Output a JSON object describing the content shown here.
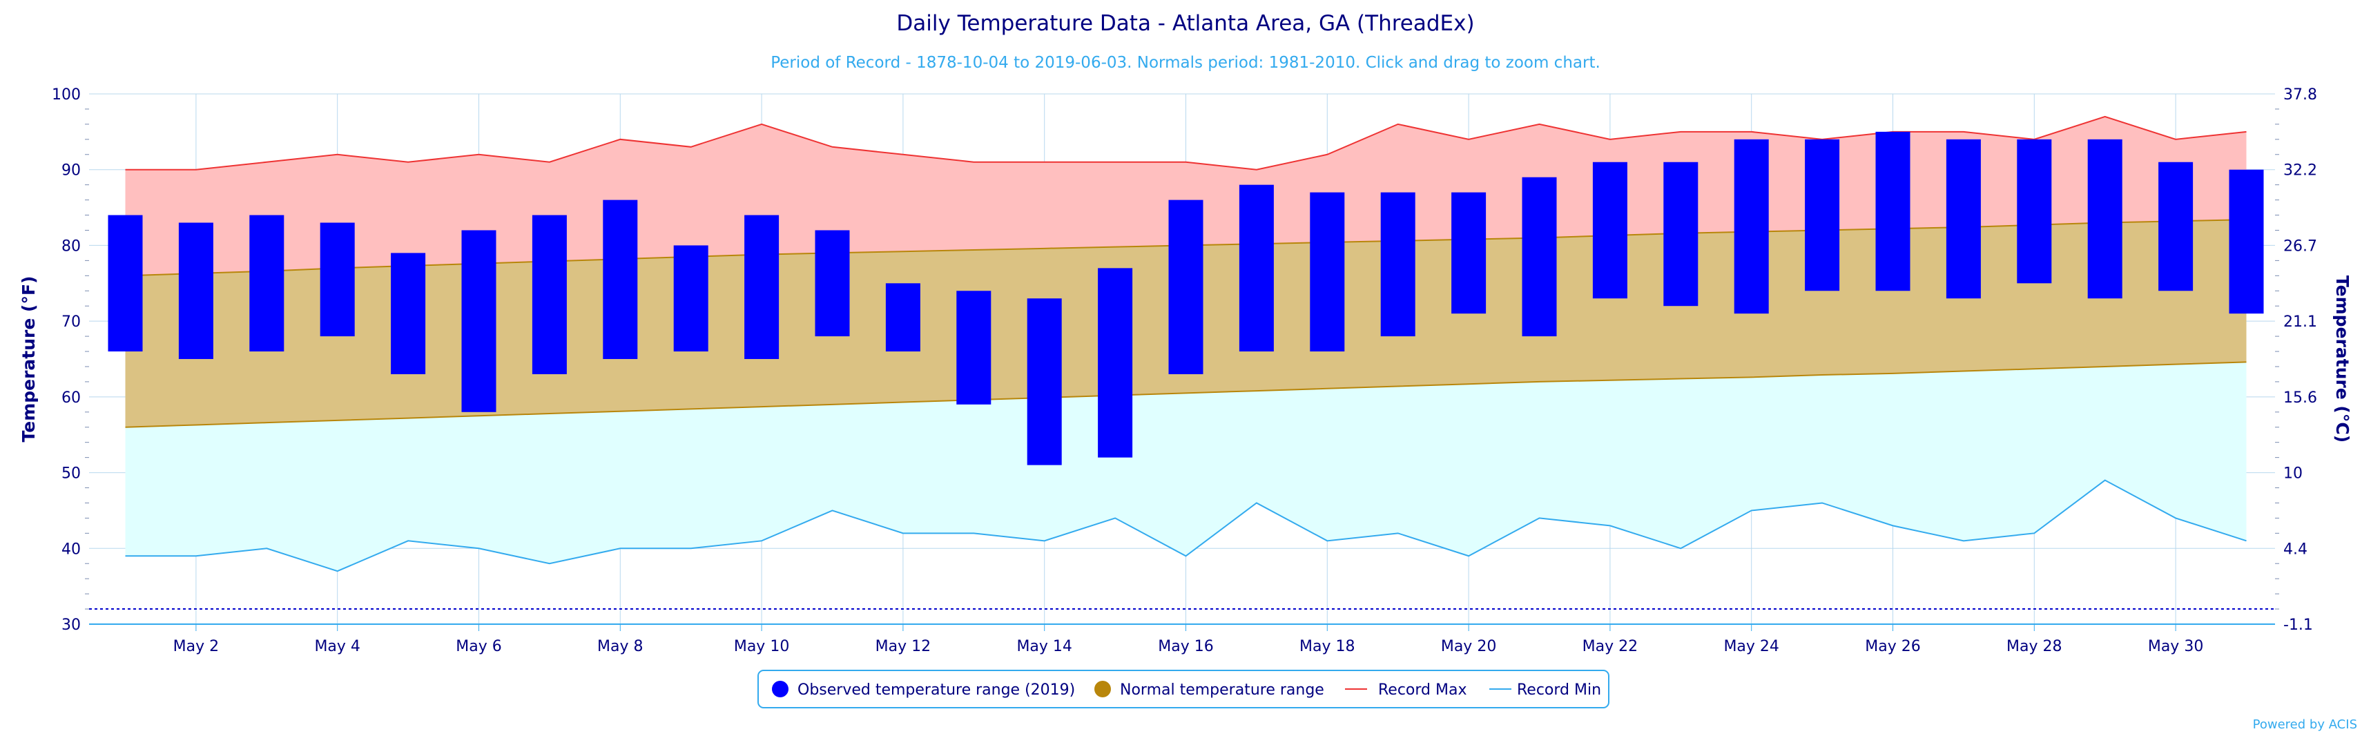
{
  "title": "Daily Temperature Data - Atlanta Area, GA (ThreadEx)",
  "subtitle": "Period of Record - 1878-10-04 to 2019-06-03. Normals period: 1981-2010. Click and drag to zoom chart.",
  "credit": "Powered by ACIS",
  "colors": {
    "observed": "#0000ff",
    "normal_fill": "#dbc283",
    "normal_line": "#b8860b",
    "record_max_fill": "#ffbfbf",
    "record_max_line": "#ee3333",
    "record_min_fill": "#e0ffff",
    "record_min_line": "#33aaee",
    "axis_text": "#000080",
    "subtitle_text": "#33aaee",
    "freezing_line": "#0000cc"
  },
  "legend": {
    "observed": "Observed temperature range (2019)",
    "normal": "Normal temperature range",
    "record_max": "Record Max",
    "record_min": "Record Min"
  },
  "chart_data": {
    "type": "bar",
    "title": "Daily Temperature Data - Atlanta Area, GA (ThreadEx)",
    "ylabel_left": "Temperature (°F)",
    "ylabel_right": "Temperature (°C)",
    "ylim": [
      30,
      100
    ],
    "y_ticks": [
      30,
      40,
      50,
      60,
      70,
      80,
      90,
      100
    ],
    "y_ticks_right": [
      "-1.1",
      "4.4",
      "10",
      "15.6",
      "21.1",
      "26.7",
      "32.2",
      "37.8"
    ],
    "freezing_line": 32,
    "x_labels": [
      "May 2",
      "May 4",
      "May 6",
      "May 8",
      "May 10",
      "May 12",
      "May 14",
      "May 16",
      "May 18",
      "May 20",
      "May 22",
      "May 24",
      "May 26",
      "May 28",
      "May 30"
    ],
    "x_label_days": [
      2,
      4,
      6,
      8,
      10,
      12,
      14,
      16,
      18,
      20,
      22,
      24,
      26,
      28,
      30
    ],
    "days": [
      1,
      2,
      3,
      4,
      5,
      6,
      7,
      8,
      9,
      10,
      11,
      12,
      13,
      14,
      15,
      16,
      17,
      18,
      19,
      20,
      21,
      22,
      23,
      24,
      25,
      26,
      27,
      28,
      29,
      30,
      31
    ],
    "grid": true,
    "legend_position": "bottom",
    "series": [
      {
        "name": "Observed temperature range (2019)",
        "low": [
          66,
          65,
          66,
          68,
          63,
          58,
          63,
          65,
          66,
          65,
          68,
          66,
          59,
          51,
          52,
          63,
          66,
          66,
          68,
          71,
          68,
          73,
          72,
          71,
          74,
          74,
          73,
          75,
          73,
          74,
          71
        ],
        "high": [
          84,
          83,
          84,
          83,
          79,
          82,
          84,
          86,
          80,
          84,
          82,
          75,
          74,
          73,
          77,
          86,
          88,
          87,
          87,
          87,
          89,
          91,
          91,
          94,
          94,
          95,
          94,
          94,
          94,
          91,
          90
        ]
      },
      {
        "name": "Normal temperature range",
        "low": [
          56,
          56.3,
          56.6,
          56.9,
          57.2,
          57.5,
          57.8,
          58.1,
          58.4,
          58.7,
          59,
          59.3,
          59.6,
          59.9,
          60.2,
          60.5,
          60.8,
          61.1,
          61.4,
          61.7,
          62,
          62.2,
          62.4,
          62.6,
          62.9,
          63.1,
          63.4,
          63.7,
          64,
          64.3,
          64.6
        ],
        "high": [
          76,
          76.3,
          76.6,
          77,
          77.3,
          77.6,
          77.9,
          78.2,
          78.5,
          78.8,
          79,
          79.2,
          79.4,
          79.6,
          79.8,
          80,
          80.2,
          80.4,
          80.6,
          80.8,
          81,
          81.3,
          81.6,
          81.8,
          82,
          82.2,
          82.4,
          82.7,
          83,
          83.2,
          83.4
        ]
      },
      {
        "name": "Record Max",
        "values": [
          90,
          90,
          91,
          92,
          91,
          92,
          91,
          94,
          93,
          96,
          93,
          92,
          91,
          91,
          91,
          91,
          90,
          92,
          96,
          94,
          96,
          94,
          95,
          95,
          94,
          95,
          95,
          94,
          97,
          94,
          95
        ]
      },
      {
        "name": "Record Min",
        "values": [
          39,
          39,
          40,
          37,
          41,
          40,
          38,
          40,
          40,
          41,
          45,
          42,
          42,
          41,
          44,
          39,
          46,
          41,
          42,
          39,
          44,
          43,
          40,
          45,
          46,
          43,
          41,
          42,
          49,
          44,
          41
        ]
      }
    ]
  }
}
